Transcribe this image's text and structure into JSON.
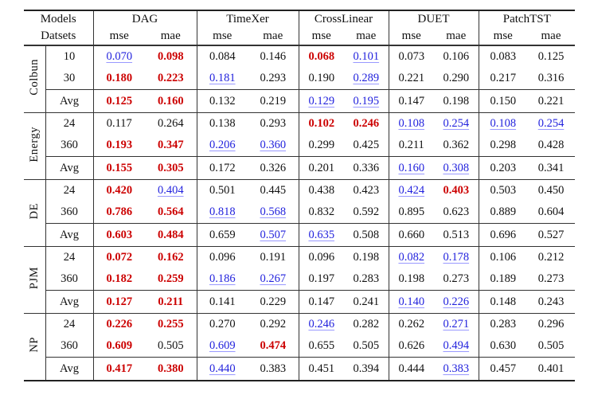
{
  "colors": {
    "best": "#cc0000",
    "second": "#2222dd",
    "second_underline": "#9999ff",
    "rule": "#333333",
    "text": "#111111"
  },
  "table": {
    "header": {
      "models_label": "Models",
      "datasets_label": "Datsets",
      "models": [
        "DAG",
        "TimeXer",
        "CrossLinear",
        "DUET",
        "PatchTST"
      ],
      "metric_labels": [
        "mse",
        "mae"
      ]
    },
    "legend": {
      "best_style": "red bold = best",
      "second_style": "blue underline = second best"
    },
    "groups": [
      {
        "name": "Colbun",
        "rows": [
          {
            "label": "10",
            "cells": [
              {
                "v": "0.070",
                "f": "second"
              },
              {
                "v": "0.098",
                "f": "best"
              },
              {
                "v": "0.084"
              },
              {
                "v": "0.146"
              },
              {
                "v": "0.068",
                "f": "best"
              },
              {
                "v": "0.101",
                "f": "second"
              },
              {
                "v": "0.073"
              },
              {
                "v": "0.106"
              },
              {
                "v": "0.083"
              },
              {
                "v": "0.125"
              }
            ]
          },
          {
            "label": "30",
            "cells": [
              {
                "v": "0.180",
                "f": "best"
              },
              {
                "v": "0.223",
                "f": "best"
              },
              {
                "v": "0.181",
                "f": "second"
              },
              {
                "v": "0.293"
              },
              {
                "v": "0.190"
              },
              {
                "v": "0.289",
                "f": "second"
              },
              {
                "v": "0.221"
              },
              {
                "v": "0.290"
              },
              {
                "v": "0.217"
              },
              {
                "v": "0.316"
              }
            ]
          }
        ],
        "avg": {
          "label": "Avg",
          "cells": [
            {
              "v": "0.125",
              "f": "best"
            },
            {
              "v": "0.160",
              "f": "best"
            },
            {
              "v": "0.132"
            },
            {
              "v": "0.219"
            },
            {
              "v": "0.129",
              "f": "second"
            },
            {
              "v": "0.195",
              "f": "second"
            },
            {
              "v": "0.147"
            },
            {
              "v": "0.198"
            },
            {
              "v": "0.150"
            },
            {
              "v": "0.221"
            }
          ]
        }
      },
      {
        "name": "Energy",
        "rows": [
          {
            "label": "24",
            "cells": [
              {
                "v": "0.117"
              },
              {
                "v": "0.264"
              },
              {
                "v": "0.138"
              },
              {
                "v": "0.293"
              },
              {
                "v": "0.102",
                "f": "best"
              },
              {
                "v": "0.246",
                "f": "best"
              },
              {
                "v": "0.108",
                "f": "second"
              },
              {
                "v": "0.254",
                "f": "second"
              },
              {
                "v": "0.108",
                "f": "second"
              },
              {
                "v": "0.254",
                "f": "second"
              }
            ]
          },
          {
            "label": "360",
            "cells": [
              {
                "v": "0.193",
                "f": "best"
              },
              {
                "v": "0.347",
                "f": "best"
              },
              {
                "v": "0.206",
                "f": "second"
              },
              {
                "v": "0.360",
                "f": "second"
              },
              {
                "v": "0.299"
              },
              {
                "v": "0.425"
              },
              {
                "v": "0.211"
              },
              {
                "v": "0.362"
              },
              {
                "v": "0.298"
              },
              {
                "v": "0.428"
              }
            ]
          }
        ],
        "avg": {
          "label": "Avg",
          "cells": [
            {
              "v": "0.155",
              "f": "best"
            },
            {
              "v": "0.305",
              "f": "best"
            },
            {
              "v": "0.172"
            },
            {
              "v": "0.326"
            },
            {
              "v": "0.201"
            },
            {
              "v": "0.336"
            },
            {
              "v": "0.160",
              "f": "second"
            },
            {
              "v": "0.308",
              "f": "second"
            },
            {
              "v": "0.203"
            },
            {
              "v": "0.341"
            }
          ]
        }
      },
      {
        "name": "DE",
        "rows": [
          {
            "label": "24",
            "cells": [
              {
                "v": "0.420",
                "f": "best"
              },
              {
                "v": "0.404",
                "f": "second"
              },
              {
                "v": "0.501"
              },
              {
                "v": "0.445"
              },
              {
                "v": "0.438"
              },
              {
                "v": "0.423"
              },
              {
                "v": "0.424",
                "f": "second"
              },
              {
                "v": "0.403",
                "f": "best"
              },
              {
                "v": "0.503"
              },
              {
                "v": "0.450"
              }
            ]
          },
          {
            "label": "360",
            "cells": [
              {
                "v": "0.786",
                "f": "best"
              },
              {
                "v": "0.564",
                "f": "best"
              },
              {
                "v": "0.818",
                "f": "second"
              },
              {
                "v": "0.568",
                "f": "second"
              },
              {
                "v": "0.832"
              },
              {
                "v": "0.592"
              },
              {
                "v": "0.895"
              },
              {
                "v": "0.623"
              },
              {
                "v": "0.889"
              },
              {
                "v": "0.604"
              }
            ]
          }
        ],
        "avg": {
          "label": "Avg",
          "cells": [
            {
              "v": "0.603",
              "f": "best"
            },
            {
              "v": "0.484",
              "f": "best"
            },
            {
              "v": "0.659"
            },
            {
              "v": "0.507",
              "f": "second"
            },
            {
              "v": "0.635",
              "f": "second"
            },
            {
              "v": "0.508"
            },
            {
              "v": "0.660"
            },
            {
              "v": "0.513"
            },
            {
              "v": "0.696"
            },
            {
              "v": "0.527"
            }
          ]
        }
      },
      {
        "name": "PJM",
        "rows": [
          {
            "label": "24",
            "cells": [
              {
                "v": "0.072",
                "f": "best"
              },
              {
                "v": "0.162",
                "f": "best"
              },
              {
                "v": "0.096"
              },
              {
                "v": "0.191"
              },
              {
                "v": "0.096"
              },
              {
                "v": "0.198"
              },
              {
                "v": "0.082",
                "f": "second"
              },
              {
                "v": "0.178",
                "f": "second"
              },
              {
                "v": "0.106"
              },
              {
                "v": "0.212"
              }
            ]
          },
          {
            "label": "360",
            "cells": [
              {
                "v": "0.182",
                "f": "best"
              },
              {
                "v": "0.259",
                "f": "best"
              },
              {
                "v": "0.186",
                "f": "second"
              },
              {
                "v": "0.267",
                "f": "second"
              },
              {
                "v": "0.197"
              },
              {
                "v": "0.283"
              },
              {
                "v": "0.198"
              },
              {
                "v": "0.273"
              },
              {
                "v": "0.189"
              },
              {
                "v": "0.273"
              }
            ]
          }
        ],
        "avg": {
          "label": "Avg",
          "cells": [
            {
              "v": "0.127",
              "f": "best"
            },
            {
              "v": "0.211",
              "f": "best"
            },
            {
              "v": "0.141"
            },
            {
              "v": "0.229"
            },
            {
              "v": "0.147"
            },
            {
              "v": "0.241"
            },
            {
              "v": "0.140",
              "f": "second"
            },
            {
              "v": "0.226",
              "f": "second"
            },
            {
              "v": "0.148"
            },
            {
              "v": "0.243"
            }
          ]
        }
      },
      {
        "name": "NP",
        "rows": [
          {
            "label": "24",
            "cells": [
              {
                "v": "0.226",
                "f": "best"
              },
              {
                "v": "0.255",
                "f": "best"
              },
              {
                "v": "0.270"
              },
              {
                "v": "0.292"
              },
              {
                "v": "0.246",
                "f": "second"
              },
              {
                "v": "0.282"
              },
              {
                "v": "0.262"
              },
              {
                "v": "0.271",
                "f": "second"
              },
              {
                "v": "0.283"
              },
              {
                "v": "0.296"
              }
            ]
          },
          {
            "label": "360",
            "cells": [
              {
                "v": "0.609",
                "f": "best"
              },
              {
                "v": "0.505"
              },
              {
                "v": "0.609",
                "f": "second"
              },
              {
                "v": "0.474",
                "f": "best"
              },
              {
                "v": "0.655"
              },
              {
                "v": "0.505"
              },
              {
                "v": "0.626"
              },
              {
                "v": "0.494",
                "f": "second"
              },
              {
                "v": "0.630"
              },
              {
                "v": "0.505"
              }
            ]
          }
        ],
        "avg": {
          "label": "Avg",
          "cells": [
            {
              "v": "0.417",
              "f": "best"
            },
            {
              "v": "0.380",
              "f": "best"
            },
            {
              "v": "0.440",
              "f": "second"
            },
            {
              "v": "0.383"
            },
            {
              "v": "0.451"
            },
            {
              "v": "0.394"
            },
            {
              "v": "0.444"
            },
            {
              "v": "0.383",
              "f": "second"
            },
            {
              "v": "0.457"
            },
            {
              "v": "0.401"
            }
          ]
        }
      }
    ]
  }
}
